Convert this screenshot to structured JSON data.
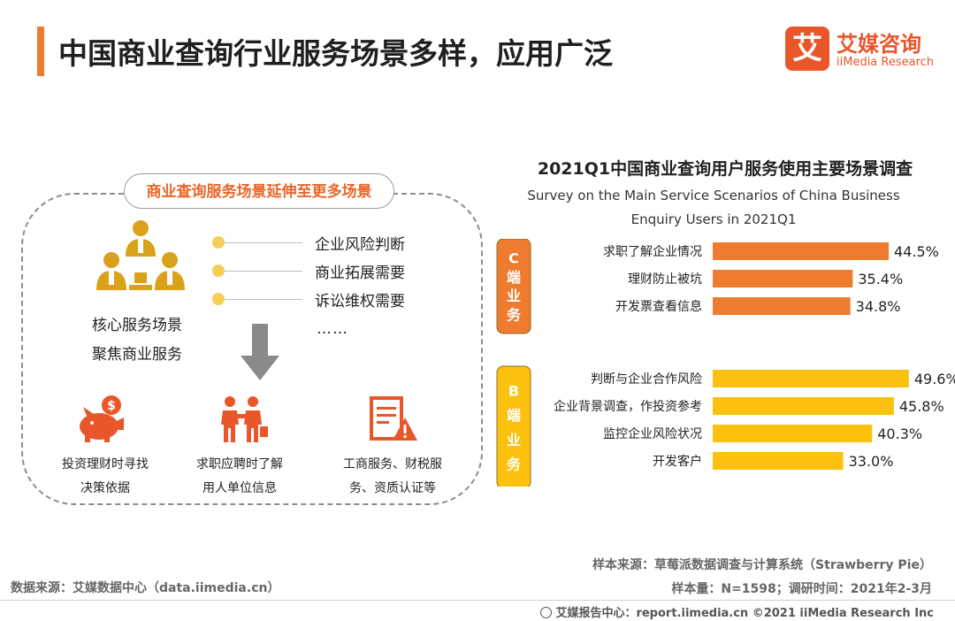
{
  "header": {
    "title": "中国商业查询行业服务场景多样，应用广泛",
    "logo": {
      "mark": "艾",
      "name_cn": "艾媒咨询",
      "name_en": "iiMedia Research"
    }
  },
  "left_panel": {
    "pill_label": "商业查询服务场景延伸至更多场景",
    "core_line1": "核心服务场景",
    "core_line2": "聚焦商业服务",
    "scenes": [
      "企业风险判断",
      "商业拓展需要",
      "诉讼维权需要"
    ],
    "more": "……",
    "sub_scenes": [
      {
        "icon": "piggy-bank-icon",
        "line1": "投资理财时寻找",
        "line2": "决策依据"
      },
      {
        "icon": "handshake-icon",
        "line1": "求职应聘时了解",
        "line2": "用人单位信息"
      },
      {
        "icon": "document-warning-icon",
        "line1": "工商服务、财税服",
        "line2": "务、资质认证等"
      }
    ]
  },
  "chart_data": {
    "type": "bar",
    "orientation": "horizontal",
    "title": "2021Q1中国商业查询用户服务使用主要场景调查",
    "subtitle": "Survey on the Main Service Scenarios of China Business Enquiry Users in 2021Q1",
    "value_suffix": "%",
    "groups": [
      {
        "label": "C端业务",
        "color": "#ef7b2f",
        "categories": [
          "求职了解企业情况",
          "理财防止被坑",
          "开发票查看信息"
        ],
        "values": [
          44.5,
          35.4,
          34.8
        ]
      },
      {
        "label": "B端业务",
        "color": "#fcc10f",
        "categories": [
          "判断与企业合作风险",
          "企业背景调查，作投资参考",
          "监控企业风险状况",
          "开发客户"
        ],
        "values": [
          49.6,
          45.8,
          40.3,
          33.0
        ]
      }
    ],
    "xlim": [
      0,
      55
    ],
    "grid": false,
    "legend": "none"
  },
  "footer": {
    "source": "数据来源：艾媒数据中心（data.iimedia.cn）",
    "sample_source": "样本来源：草莓派数据调查与计算系统（Strawberry Pie）",
    "sample_size": "样本量：N=1598；调研时间：2021年2-3月",
    "report": "艾媒报告中心：report.iimedia.cn ©2021  iiMedia Research  Inc"
  }
}
